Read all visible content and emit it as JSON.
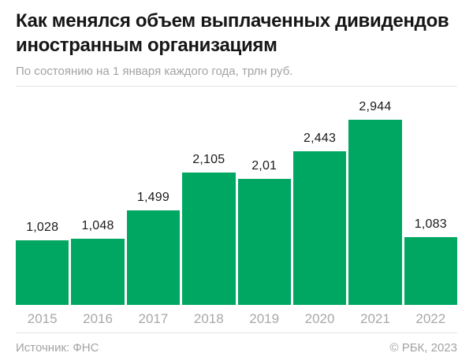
{
  "header": {
    "title": "Как менялся объем выплаченных дивидендов иностранным организациям",
    "subtitle": "По состоянию на 1 января каждого года, трлн руб."
  },
  "footer": {
    "source": "Источник: ФНС",
    "copyright": "© РБК, 2023"
  },
  "colors": {
    "background": "#ffffff",
    "bar_green": "#00a762",
    "title_text": "#161616",
    "value_text": "#1a1a1a",
    "muted_text": "#a3a3a3",
    "year_text": "#a8a8a8",
    "divider": "#e4e4e4"
  },
  "chart_data": {
    "type": "bar",
    "title": "Как менялся объем выплаченных дивидендов иностранным организациям",
    "subtitle": "По состоянию на 1 января каждого года, трлн руб.",
    "categories": [
      "2015",
      "2016",
      "2017",
      "2018",
      "2019",
      "2020",
      "2021",
      "2022"
    ],
    "values": [
      1.028,
      1.048,
      1.499,
      2.105,
      2.01,
      2.443,
      2.944,
      1.083
    ],
    "value_labels": [
      "1,028",
      "1,048",
      "1,499",
      "2,105",
      "2,01",
      "2,443",
      "2,944",
      "1,083"
    ],
    "unit": "трлн руб.",
    "xlabel": "",
    "ylabel": "",
    "ylim": [
      0,
      3
    ],
    "grid": false,
    "legend": false,
    "data_labels": true,
    "source": "ФНС"
  }
}
